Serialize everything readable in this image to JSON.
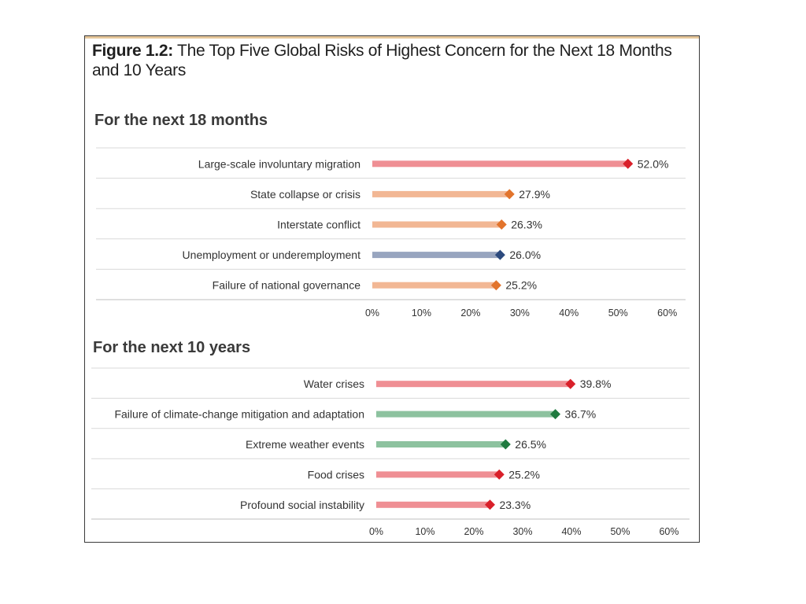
{
  "figure": {
    "label": "Figure 1.2:",
    "title": "The Top Five Global Risks of Highest Concern for the Next 18 Months and 10 Years"
  },
  "colors": {
    "societal_bar": "#ef8f94",
    "societal_marker": "#d9202a",
    "geopolitical_bar": "#f2b794",
    "geopolitical_marker": "#e2742c",
    "economic_bar": "#98a5bf",
    "economic_marker": "#2c4a7e",
    "environmental_bar": "#8dc29f",
    "environmental_marker": "#1f7a3f"
  },
  "chart_data": [
    {
      "type": "bar",
      "orientation": "horizontal",
      "title": "For the next 18 months",
      "categories": [
        "Large-scale involuntary migration",
        "State collapse or crisis",
        "Interstate conflict",
        "Unemployment or underemployment",
        "Failure of national governance"
      ],
      "values": [
        52.0,
        27.9,
        26.3,
        26.0,
        25.2
      ],
      "value_labels": [
        "52.0%",
        "27.9%",
        "26.3%",
        "26.0%",
        "25.2%"
      ],
      "color_groups": [
        "societal",
        "geopolitical",
        "geopolitical",
        "economic",
        "geopolitical"
      ],
      "xlim": [
        0,
        60
      ],
      "xticks": [
        0,
        10,
        20,
        30,
        40,
        50,
        60
      ],
      "xtick_labels": [
        "0%",
        "10%",
        "20%",
        "30%",
        "40%",
        "50%",
        "60%"
      ],
      "grid": false,
      "legend": "none"
    },
    {
      "type": "bar",
      "orientation": "horizontal",
      "title": "For the next 10 years",
      "categories": [
        "Water crises",
        "Failure of climate-change mitigation and adaptation",
        "Extreme weather events",
        "Food crises",
        "Profound social instability"
      ],
      "values": [
        39.8,
        36.7,
        26.5,
        25.2,
        23.3
      ],
      "value_labels": [
        "39.8%",
        "36.7%",
        "26.5%",
        "25.2%",
        "23.3%"
      ],
      "color_groups": [
        "societal",
        "environmental",
        "environmental",
        "societal",
        "societal"
      ],
      "xlim": [
        0,
        60
      ],
      "xticks": [
        0,
        10,
        20,
        30,
        40,
        50,
        60
      ],
      "xtick_labels": [
        "0%",
        "10%",
        "20%",
        "30%",
        "40%",
        "50%",
        "60%"
      ],
      "grid": false,
      "legend": "none"
    }
  ]
}
